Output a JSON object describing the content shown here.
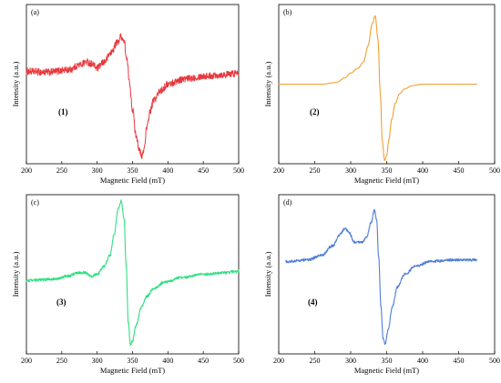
{
  "chart_data": [
    {
      "type": "line",
      "panel_label": "(a)",
      "sample_label": "(1)",
      "xlabel": "Magnetic Field (mT)",
      "ylabel": "Intensity (a.u.)",
      "xlim": [
        200,
        500
      ],
      "x_ticks": [
        "200",
        "250",
        "300",
        "350",
        "400",
        "450",
        "500"
      ],
      "grid": false,
      "noisy": true,
      "series": [
        {
          "color": "#e8383d",
          "x": [
            200,
            230,
            260,
            275,
            285,
            292,
            300,
            310,
            320,
            328,
            334,
            338,
            342,
            346,
            350,
            355,
            360,
            363,
            366,
            370,
            375,
            380,
            390,
            400,
            420,
            450,
            480,
            500
          ],
          "y": [
            0.58,
            0.575,
            0.59,
            0.62,
            0.64,
            0.63,
            0.6,
            0.64,
            0.7,
            0.76,
            0.8,
            0.77,
            0.65,
            0.5,
            0.34,
            0.18,
            0.08,
            0.04,
            0.09,
            0.22,
            0.33,
            0.4,
            0.46,
            0.5,
            0.53,
            0.55,
            0.56,
            0.57
          ]
        }
      ]
    },
    {
      "type": "line",
      "panel_label": "(b)",
      "sample_label": "(2)",
      "xlabel": "Magnetic Field (mT)",
      "ylabel": "Intensity (a.u.)",
      "xlim": [
        200,
        500
      ],
      "x_ticks": [
        "200",
        "250",
        "300",
        "350",
        "400",
        "450",
        "500"
      ],
      "grid": false,
      "noisy": false,
      "series": [
        {
          "color": "#f0a030",
          "x": [
            200,
            260,
            280,
            292,
            300,
            310,
            318,
            324,
            330,
            334,
            338,
            341,
            344,
            347,
            350,
            353,
            357,
            362,
            368,
            375,
            385,
            400,
            420,
            450,
            475
          ],
          "y": [
            0.5,
            0.5,
            0.51,
            0.54,
            0.57,
            0.6,
            0.64,
            0.74,
            0.88,
            0.93,
            0.78,
            0.45,
            0.14,
            0.02,
            0.05,
            0.15,
            0.28,
            0.38,
            0.44,
            0.47,
            0.49,
            0.5,
            0.5,
            0.5,
            0.5
          ]
        }
      ]
    },
    {
      "type": "line",
      "panel_label": "(c)",
      "sample_label": "(3)",
      "xlabel": "Magnetic Field (mT)",
      "ylabel": "Intensity (a.u.)",
      "xlim": [
        200,
        500
      ],
      "x_ticks": [
        "200",
        "250",
        "300",
        "350",
        "400",
        "450",
        "500"
      ],
      "grid": false,
      "noisy": true,
      "series": [
        {
          "color": "#2ee080",
          "x": [
            200,
            240,
            260,
            272,
            282,
            292,
            300,
            310,
            318,
            324,
            330,
            334,
            338,
            341,
            344,
            347,
            350,
            355,
            362,
            370,
            380,
            395,
            420,
            450,
            480,
            500
          ],
          "y": [
            0.46,
            0.47,
            0.49,
            0.51,
            0.51,
            0.49,
            0.5,
            0.55,
            0.62,
            0.75,
            0.92,
            0.96,
            0.85,
            0.55,
            0.2,
            0.06,
            0.08,
            0.18,
            0.29,
            0.36,
            0.41,
            0.45,
            0.48,
            0.5,
            0.51,
            0.52
          ]
        }
      ]
    },
    {
      "type": "line",
      "panel_label": "(d)",
      "sample_label": "(4)",
      "xlabel": "Magnetic Field (mT)",
      "ylabel": "Intensity (a.u.)",
      "xlim": [
        200,
        500
      ],
      "x_ticks": [
        "200",
        "250",
        "300",
        "350",
        "400",
        "450",
        "500"
      ],
      "grid": false,
      "noisy": true,
      "series": [
        {
          "color": "#4f7dd8",
          "x": [
            210,
            240,
            260,
            275,
            285,
            292,
            298,
            305,
            315,
            322,
            328,
            333,
            336,
            339,
            342,
            345,
            348,
            352,
            358,
            365,
            375,
            390,
            410,
            440,
            475
          ],
          "y": [
            0.58,
            0.59,
            0.62,
            0.68,
            0.75,
            0.79,
            0.76,
            0.7,
            0.7,
            0.73,
            0.82,
            0.9,
            0.84,
            0.6,
            0.3,
            0.1,
            0.06,
            0.15,
            0.3,
            0.42,
            0.5,
            0.55,
            0.58,
            0.59,
            0.59
          ]
        }
      ]
    }
  ]
}
